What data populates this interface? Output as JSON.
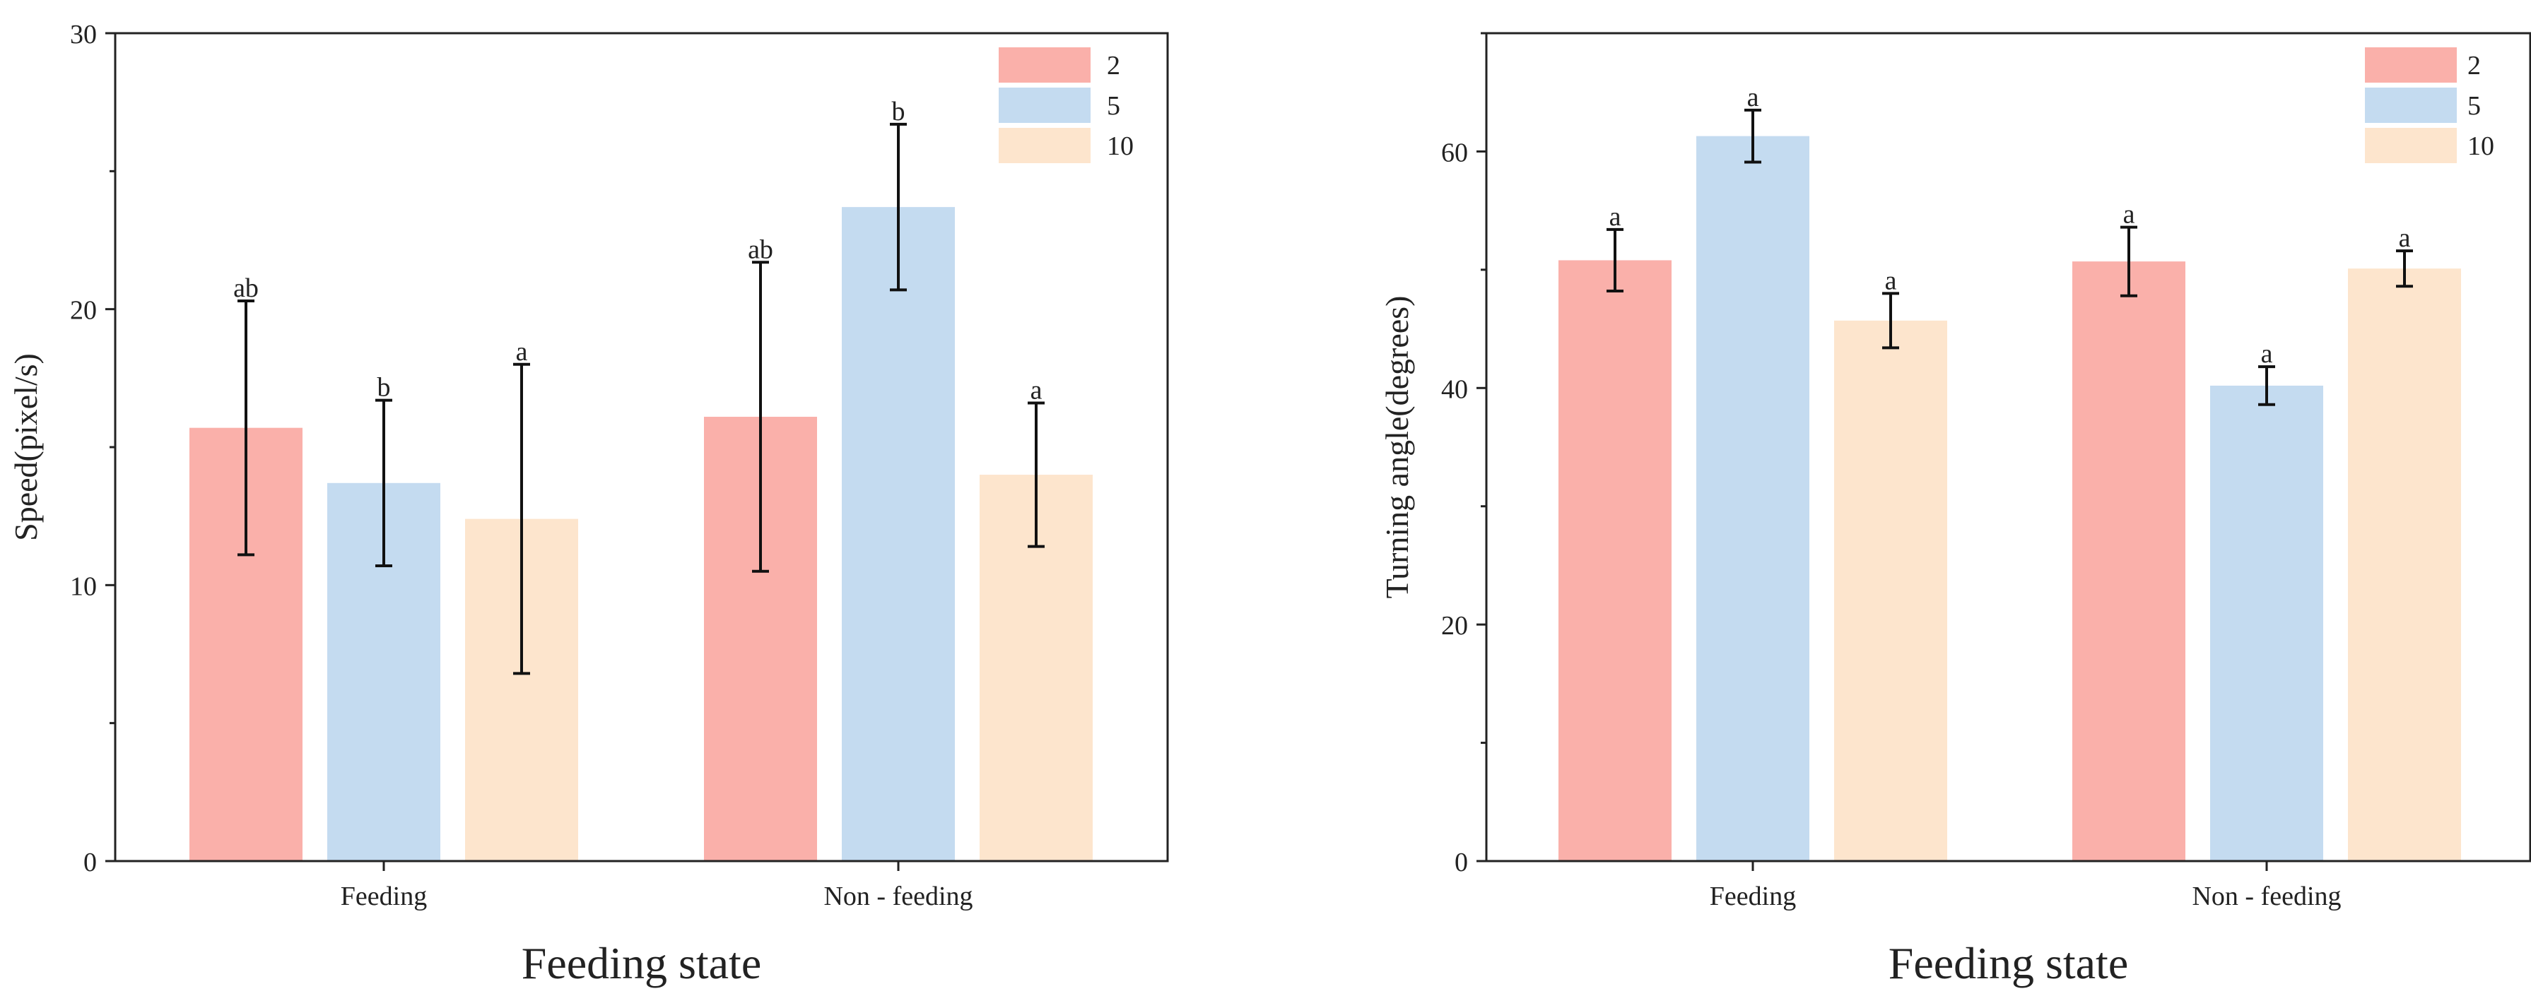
{
  "colors": {
    "series_2": "#fab0aa",
    "series_5": "#c4dbf0",
    "series_10": "#fde5cd",
    "axis": "#222222",
    "errorbar": "#111111"
  },
  "chart_data": [
    {
      "type": "bar",
      "title": "",
      "xlabel": "Feeding state",
      "ylabel": "Speed(pixel/s)",
      "ylim": [
        0,
        30
      ],
      "yticks": [
        0,
        10,
        20,
        30
      ],
      "categories": [
        "Feeding",
        "Non - feeding"
      ],
      "legend_position": "top-right",
      "series": [
        {
          "name": "2",
          "color_key": "series_2",
          "values": [
            15.7,
            16.1
          ],
          "error": [
            4.6,
            5.6
          ],
          "letters": [
            "ab",
            "ab"
          ]
        },
        {
          "name": "5",
          "color_key": "series_5",
          "values": [
            13.7,
            23.7
          ],
          "error": [
            3.0,
            3.0
          ],
          "letters": [
            "b",
            "b"
          ]
        },
        {
          "name": "10",
          "color_key": "series_10",
          "values": [
            12.4,
            14.0
          ],
          "error": [
            5.6,
            2.6
          ],
          "letters": [
            "a",
            "a"
          ]
        }
      ]
    },
    {
      "type": "bar",
      "title": "",
      "xlabel": "Feeding state",
      "ylabel": "Turning angle(degrees)",
      "ylim": [
        0,
        70
      ],
      "yticks": [
        0,
        20,
        40,
        60
      ],
      "categories": [
        "Feeding",
        "Non - feeding"
      ],
      "legend_position": "top-right",
      "series": [
        {
          "name": "2",
          "color_key": "series_2",
          "values": [
            50.8,
            50.7
          ],
          "error": [
            2.6,
            2.9
          ],
          "letters": [
            "a",
            "a"
          ]
        },
        {
          "name": "5",
          "color_key": "series_5",
          "values": [
            61.3,
            40.2
          ],
          "error": [
            2.2,
            1.6
          ],
          "letters": [
            "a",
            "a"
          ]
        },
        {
          "name": "10",
          "color_key": "series_10",
          "values": [
            45.7,
            50.1
          ],
          "error": [
            2.3,
            1.5
          ],
          "letters": [
            "a",
            "a"
          ]
        }
      ]
    }
  ]
}
